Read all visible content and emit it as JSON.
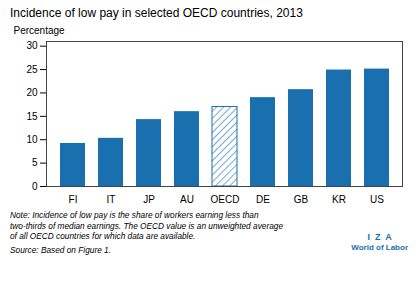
{
  "chart_data": {
    "type": "bar",
    "title": "Incidence of low pay in selected OECD countries, 2013",
    "categories": [
      "FI",
      "IT",
      "JP",
      "AU",
      "OECD",
      "DE",
      "GB",
      "KR",
      "US"
    ],
    "values": [
      9.2,
      10.3,
      14.3,
      16.0,
      17.0,
      19.0,
      20.7,
      24.9,
      25.1
    ],
    "color": "#1a6faf",
    "colors": [
      "#1a6faf",
      "#1a6faf",
      "#1a6faf",
      "#1a6faf",
      "#ffffff",
      "#1a6faf",
      "#1a6faf",
      "#1a6faf",
      "#1a6faf"
    ],
    "ylabel": "Percentage",
    "ylim": [
      0,
      31
    ],
    "yticks": [
      0,
      5,
      10,
      15,
      20,
      25,
      30
    ],
    "grid": false,
    "annotations": [
      "Note: Incidence of low pay is the share of workers earning less than",
      "two-thirds of median earnings. The OECD value is an unweighted average",
      "of all OECD countries for which data are available.",
      "Source: Based on Figure 1.",
      "I  Z  A",
      "World of Labor"
    ]
  }
}
